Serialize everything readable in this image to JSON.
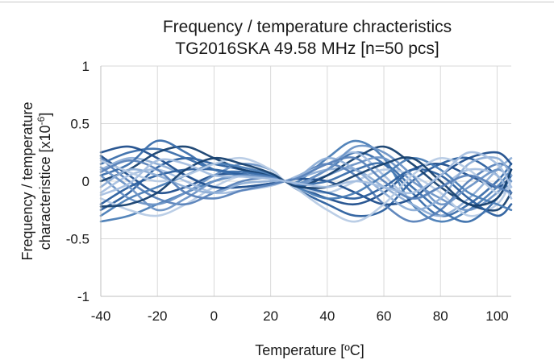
{
  "chart_data": {
    "type": "line",
    "title": "Frequency / temperature chracteristics",
    "subtitle": "TG2016SKA 49.58 MHz [n=50 pcs]",
    "xlabel": "Temperature   [ºC]",
    "ylabel_line1": "Frequency / temperature",
    "ylabel_line2_prefix": "characteristice [x10",
    "ylabel_exponent": "-6",
    "ylabel_line2_suffix": "]",
    "xlim": [
      -40,
      105
    ],
    "ylim": [
      -1,
      1
    ],
    "x_ticks": [
      -40,
      -20,
      0,
      20,
      40,
      60,
      80,
      100
    ],
    "y_ticks": [
      -1,
      -0.5,
      0,
      0.5,
      1
    ],
    "x_tick_labels": [
      "-40",
      "-20",
      "0",
      "20",
      "40",
      "60",
      "80",
      "100"
    ],
    "y_tick_labels": [
      "-1",
      "-0.5",
      "0",
      "0.5",
      "1"
    ],
    "grid": true,
    "legend": "none",
    "sample_count": 50,
    "x": [
      -40,
      -30,
      -20,
      -10,
      0,
      10,
      20,
      25,
      30,
      40,
      50,
      60,
      70,
      80,
      90,
      100,
      105
    ],
    "colors": [
      "#1f4e8c",
      "#2b5f9e",
      "#3a6eab",
      "#4a7db6",
      "#6c94c6",
      "#8eaed6",
      "#b7cbe5",
      "#16406f",
      "#5882b9",
      "#a5bfe0"
    ],
    "series": [
      {
        "values": [
          0.22,
          0.05,
          -0.1,
          -0.05,
          0.05,
          0.06,
          0.03,
          0,
          -0.05,
          -0.15,
          -0.2,
          -0.1,
          0.1,
          0.15,
          0.05,
          -0.05,
          0.05
        ]
      },
      {
        "values": [
          -0.25,
          -0.1,
          0.12,
          0.2,
          0.15,
          0.1,
          0.05,
          0,
          -0.08,
          -0.2,
          -0.3,
          -0.25,
          0.0,
          0.15,
          0.2,
          0.05,
          -0.1
        ]
      },
      {
        "values": [
          0.15,
          0.25,
          0.28,
          0.2,
          0.1,
          0.05,
          0.02,
          0,
          -0.02,
          0.1,
          0.25,
          0.15,
          -0.1,
          -0.3,
          -0.2,
          0.0,
          0.15
        ]
      },
      {
        "values": [
          -0.35,
          -0.3,
          -0.2,
          -0.1,
          0.0,
          0.05,
          0.04,
          0,
          0.0,
          0.2,
          0.35,
          0.2,
          -0.2,
          -0.35,
          -0.25,
          -0.05,
          0.1
        ]
      },
      {
        "values": [
          0.05,
          -0.15,
          -0.2,
          -0.1,
          0.05,
          0.15,
          0.1,
          0,
          -0.03,
          0.05,
          0.15,
          0.2,
          0.0,
          -0.15,
          -0.25,
          -0.1,
          0.05
        ]
      },
      {
        "values": [
          0.1,
          0.2,
          0.15,
          0.05,
          -0.05,
          -0.05,
          -0.02,
          0,
          0.03,
          0.1,
          0.1,
          -0.05,
          -0.2,
          -0.3,
          -0.15,
          0.1,
          0.2
        ]
      },
      {
        "values": [
          -0.15,
          -0.25,
          -0.3,
          -0.2,
          -0.05,
          0.05,
          0.05,
          0,
          -0.05,
          -0.1,
          0.0,
          0.1,
          0.05,
          -0.1,
          -0.3,
          -0.2,
          0.0
        ]
      },
      {
        "values": [
          0.0,
          0.1,
          0.25,
          0.3,
          0.2,
          0.1,
          0.05,
          0,
          -0.05,
          0.05,
          0.2,
          0.3,
          0.15,
          -0.05,
          -0.2,
          -0.25,
          -0.1
        ]
      },
      {
        "values": [
          0.2,
          0.0,
          -0.15,
          -0.2,
          -0.1,
          0.0,
          0.03,
          0,
          0.05,
          0.15,
          0.05,
          -0.2,
          -0.35,
          -0.25,
          0.0,
          0.15,
          0.1
        ]
      },
      {
        "values": [
          -0.1,
          0.05,
          0.1,
          0.0,
          -0.1,
          -0.08,
          -0.04,
          0,
          0.05,
          0.15,
          0.25,
          0.05,
          -0.15,
          -0.05,
          0.1,
          0.05,
          -0.15
        ]
      },
      {
        "values": [
          0.25,
          0.3,
          0.2,
          0.05,
          -0.05,
          -0.05,
          -0.02,
          0,
          0.02,
          0.0,
          -0.1,
          -0.2,
          -0.15,
          0.05,
          0.2,
          0.25,
          0.15
        ]
      },
      {
        "values": [
          -0.2,
          -0.05,
          0.05,
          0.1,
          0.1,
          0.06,
          0.03,
          0,
          -0.04,
          -0.1,
          -0.15,
          -0.05,
          0.1,
          0.05,
          -0.15,
          -0.3,
          -0.2
        ]
      },
      {
        "values": [
          0.05,
          0.15,
          0.35,
          0.25,
          0.1,
          0.08,
          0.04,
          0,
          -0.03,
          0.0,
          0.1,
          0.15,
          -0.05,
          -0.25,
          -0.35,
          -0.15,
          0.05
        ]
      },
      {
        "values": [
          -0.3,
          -0.15,
          -0.05,
          0.05,
          0.15,
          0.12,
          0.06,
          0,
          -0.06,
          -0.15,
          -0.1,
          0.05,
          0.2,
          0.1,
          -0.1,
          -0.2,
          -0.25
        ]
      },
      {
        "values": [
          0.12,
          -0.05,
          -0.25,
          -0.15,
          0.0,
          0.05,
          0.03,
          0,
          -0.02,
          0.1,
          0.3,
          0.25,
          0.05,
          -0.2,
          -0.05,
          0.1,
          0.0
        ]
      },
      {
        "values": [
          -0.05,
          0.1,
          0.05,
          -0.05,
          -0.1,
          -0.02,
          0.0,
          0,
          0.04,
          0.2,
          0.1,
          -0.1,
          -0.25,
          -0.15,
          0.15,
          0.2,
          0.05
        ]
      },
      {
        "values": [
          0.18,
          0.08,
          0.0,
          0.05,
          0.15,
          0.2,
          0.1,
          0,
          -0.08,
          -0.25,
          -0.35,
          -0.2,
          0.05,
          0.2,
          0.1,
          -0.1,
          -0.05
        ]
      },
      {
        "values": [
          -0.22,
          -0.2,
          -0.1,
          0.1,
          0.2,
          0.15,
          0.07,
          0,
          -0.05,
          -0.05,
          0.05,
          0.15,
          0.2,
          0.0,
          -0.2,
          -0.15,
          0.1
        ]
      },
      {
        "values": [
          0.08,
          0.18,
          0.1,
          -0.1,
          -0.15,
          -0.08,
          -0.03,
          0,
          0.03,
          0.15,
          0.2,
          0.0,
          -0.15,
          -0.05,
          0.05,
          -0.05,
          -0.1
        ]
      },
      {
        "values": [
          -0.12,
          -0.02,
          0.18,
          0.15,
          0.05,
          0.04,
          0.02,
          0,
          -0.02,
          -0.05,
          0.0,
          -0.05,
          -0.1,
          0.05,
          0.25,
          0.15,
          -0.05
        ]
      }
    ]
  }
}
